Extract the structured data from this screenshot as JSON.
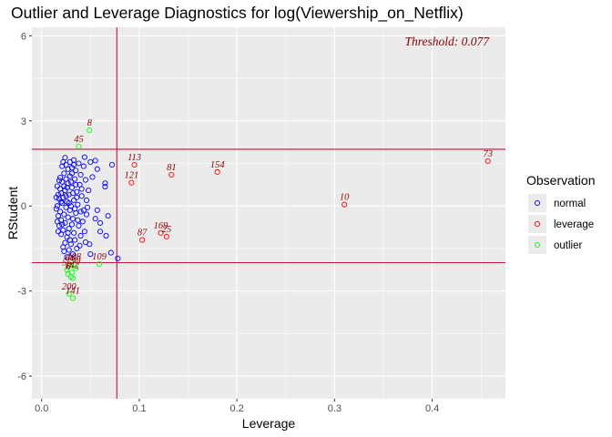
{
  "chart_data": {
    "type": "scatter",
    "title": "Outlier and Leverage Diagnostics for log(Viewership_on_Netflix)",
    "xlabel": "Leverage",
    "ylabel": "RStudent",
    "xlim": [
      -0.01,
      0.475
    ],
    "ylim": [
      -6.8,
      6.3
    ],
    "x_ticks": [
      0.0,
      0.1,
      0.2,
      0.3,
      0.4
    ],
    "x_tick_labels": [
      "0.0",
      "0.1",
      "0.2",
      "0.3",
      "0.4"
    ],
    "y_ticks": [
      -6,
      -3,
      0,
      3,
      6
    ],
    "y_tick_labels": [
      "-6",
      "-3",
      "0",
      "3",
      "6"
    ],
    "grid": true,
    "threshold_leverage": 0.077,
    "threshold_label": "Threshold: 0.077",
    "rstudent_limits": [
      -2,
      2
    ],
    "legend": {
      "title": "Observation",
      "position": "right",
      "entries": [
        {
          "label": "normal",
          "color": "#0000ff"
        },
        {
          "label": "leverage",
          "color": "#ff0000"
        },
        {
          "label": "outlier",
          "color": "#00ff00"
        }
      ]
    },
    "colors": {
      "normal": "#0000ff",
      "leverage": "#ff0000",
      "outlier": "#00ff00",
      "reference_line": "#c0143c",
      "label_text": "#8b0000"
    },
    "series": [
      {
        "name": "leverage",
        "points": [
          {
            "x": 0.457,
            "y": 1.58,
            "label": "73"
          },
          {
            "x": 0.31,
            "y": 0.05,
            "label": "10"
          },
          {
            "x": 0.18,
            "y": 1.2,
            "label": "154"
          },
          {
            "x": 0.133,
            "y": 1.1,
            "label": "81"
          },
          {
            "x": 0.095,
            "y": 1.45,
            "label": "113"
          },
          {
            "x": 0.092,
            "y": 0.82,
            "label": "121"
          },
          {
            "x": 0.103,
            "y": -1.2,
            "label": "87"
          },
          {
            "x": 0.122,
            "y": -0.95,
            "label": "169"
          },
          {
            "x": 0.128,
            "y": -1.08,
            "label": "25"
          }
        ]
      },
      {
        "name": "outlier",
        "points": [
          {
            "x": 0.049,
            "y": 2.67,
            "label": "8"
          },
          {
            "x": 0.038,
            "y": 2.1,
            "label": "45"
          },
          {
            "x": 0.059,
            "y": -2.05,
            "label": "109"
          },
          {
            "x": 0.033,
            "y": -2.05,
            "label": "108"
          },
          {
            "x": 0.029,
            "y": -2.1,
            "label": "66"
          },
          {
            "x": 0.035,
            "y": -2.2,
            "label": "99"
          },
          {
            "x": 0.026,
            "y": -2.25,
            "label": "55"
          },
          {
            "x": 0.031,
            "y": -2.35,
            "label": "142"
          },
          {
            "x": 0.027,
            "y": -2.4,
            "label": "6"
          },
          {
            "x": 0.032,
            "y": -2.55,
            "label": ""
          },
          {
            "x": 0.03,
            "y": -2.5,
            "label": ""
          },
          {
            "x": 0.028,
            "y": -3.1,
            "label": "200"
          },
          {
            "x": 0.032,
            "y": -3.25,
            "label": "141"
          }
        ]
      },
      {
        "name": "normal",
        "points": [
          {
            "x": 0.078,
            "y": -1.85,
            "label": ""
          },
          {
            "x": 0.071,
            "y": -1.65,
            "label": ""
          },
          {
            "x": 0.072,
            "y": 1.45,
            "label": ""
          },
          {
            "x": 0.065,
            "y": 0.8,
            "label": ""
          },
          {
            "x": 0.065,
            "y": 0.68,
            "label": ""
          },
          {
            "x": 0.068,
            "y": -0.35,
            "label": ""
          },
          {
            "x": 0.066,
            "y": -1.05,
            "label": ""
          },
          {
            "x": 0.055,
            "y": 1.6,
            "label": ""
          },
          {
            "x": 0.057,
            "y": 1.3,
            "label": ""
          },
          {
            "x": 0.05,
            "y": 1.55,
            "label": ""
          },
          {
            "x": 0.06,
            "y": -0.6,
            "label": ""
          },
          {
            "x": 0.057,
            "y": -0.15,
            "label": ""
          },
          {
            "x": 0.06,
            "y": -0.9,
            "label": ""
          },
          {
            "x": 0.055,
            "y": -0.45,
            "label": ""
          },
          {
            "x": 0.05,
            "y": -1.7,
            "label": ""
          },
          {
            "x": 0.049,
            "y": -1.35,
            "label": ""
          },
          {
            "x": 0.045,
            "y": -1.28,
            "label": ""
          },
          {
            "x": 0.052,
            "y": 1.02,
            "label": ""
          },
          {
            "x": 0.048,
            "y": 0.55,
            "label": ""
          },
          {
            "x": 0.046,
            "y": 0.2,
            "label": ""
          },
          {
            "x": 0.044,
            "y": 1.72,
            "label": ""
          },
          {
            "x": 0.043,
            "y": 1.4,
            "label": ""
          },
          {
            "x": 0.045,
            "y": 0.92,
            "label": ""
          },
          {
            "x": 0.042,
            "y": -0.55,
            "label": ""
          },
          {
            "x": 0.044,
            "y": -0.9,
            "label": ""
          },
          {
            "x": 0.047,
            "y": -0.05,
            "label": ""
          },
          {
            "x": 0.046,
            "y": -0.3,
            "label": ""
          },
          {
            "x": 0.04,
            "y": 1.1,
            "label": ""
          },
          {
            "x": 0.041,
            "y": 0.35,
            "label": ""
          },
          {
            "x": 0.04,
            "y": -0.2,
            "label": ""
          },
          {
            "x": 0.04,
            "y": -1.05,
            "label": ""
          },
          {
            "x": 0.038,
            "y": 1.5,
            "label": ""
          },
          {
            "x": 0.039,
            "y": 0.75,
            "label": ""
          },
          {
            "x": 0.037,
            "y": 0.05,
            "label": ""
          },
          {
            "x": 0.038,
            "y": -0.7,
            "label": ""
          },
          {
            "x": 0.036,
            "y": -1.5,
            "label": ""
          },
          {
            "x": 0.035,
            "y": 1.25,
            "label": ""
          },
          {
            "x": 0.036,
            "y": 0.5,
            "label": ""
          },
          {
            "x": 0.035,
            "y": -0.25,
            "label": ""
          },
          {
            "x": 0.034,
            "y": -1.2,
            "label": ""
          },
          {
            "x": 0.033,
            "y": 1.62,
            "label": ""
          },
          {
            "x": 0.034,
            "y": 0.95,
            "label": ""
          },
          {
            "x": 0.033,
            "y": 0.2,
            "label": ""
          },
          {
            "x": 0.032,
            "y": -0.45,
            "label": ""
          },
          {
            "x": 0.033,
            "y": -0.95,
            "label": ""
          },
          {
            "x": 0.032,
            "y": -1.7,
            "label": ""
          },
          {
            "x": 0.031,
            "y": 1.35,
            "label": ""
          },
          {
            "x": 0.031,
            "y": 0.65,
            "label": ""
          },
          {
            "x": 0.03,
            "y": 0.0,
            "label": ""
          },
          {
            "x": 0.031,
            "y": -0.65,
            "label": ""
          },
          {
            "x": 0.03,
            "y": -1.35,
            "label": ""
          },
          {
            "x": 0.029,
            "y": 1.55,
            "label": ""
          },
          {
            "x": 0.029,
            "y": 1.05,
            "label": ""
          },
          {
            "x": 0.028,
            "y": 0.4,
            "label": ""
          },
          {
            "x": 0.029,
            "y": -0.15,
            "label": ""
          },
          {
            "x": 0.028,
            "y": -0.8,
            "label": ""
          },
          {
            "x": 0.028,
            "y": -1.55,
            "label": ""
          },
          {
            "x": 0.027,
            "y": 1.3,
            "label": ""
          },
          {
            "x": 0.027,
            "y": 0.8,
            "label": ""
          },
          {
            "x": 0.026,
            "y": 0.15,
            "label": ""
          },
          {
            "x": 0.027,
            "y": -0.4,
            "label": ""
          },
          {
            "x": 0.026,
            "y": -1.1,
            "label": ""
          },
          {
            "x": 0.026,
            "y": -1.8,
            "label": ""
          },
          {
            "x": 0.025,
            "y": 1.45,
            "label": ""
          },
          {
            "x": 0.025,
            "y": 0.95,
            "label": ""
          },
          {
            "x": 0.024,
            "y": 0.55,
            "label": ""
          },
          {
            "x": 0.025,
            "y": -0.05,
            "label": ""
          },
          {
            "x": 0.024,
            "y": -0.6,
            "label": ""
          },
          {
            "x": 0.024,
            "y": -1.3,
            "label": ""
          },
          {
            "x": 0.023,
            "y": 1.15,
            "label": ""
          },
          {
            "x": 0.023,
            "y": 0.7,
            "label": ""
          },
          {
            "x": 0.022,
            "y": 0.3,
            "label": ""
          },
          {
            "x": 0.023,
            "y": -0.3,
            "label": ""
          },
          {
            "x": 0.022,
            "y": -0.85,
            "label": ""
          },
          {
            "x": 0.022,
            "y": -1.45,
            "label": ""
          },
          {
            "x": 0.021,
            "y": 1.4,
            "label": ""
          },
          {
            "x": 0.021,
            "y": 0.85,
            "label": ""
          },
          {
            "x": 0.02,
            "y": 0.45,
            "label": ""
          },
          {
            "x": 0.021,
            "y": 0.1,
            "label": ""
          },
          {
            "x": 0.02,
            "y": -0.5,
            "label": ""
          },
          {
            "x": 0.02,
            "y": -1.0,
            "label": ""
          },
          {
            "x": 0.019,
            "y": 1.0,
            "label": ""
          },
          {
            "x": 0.019,
            "y": 0.6,
            "label": ""
          },
          {
            "x": 0.018,
            "y": 0.25,
            "label": ""
          },
          {
            "x": 0.019,
            "y": -0.2,
            "label": ""
          },
          {
            "x": 0.018,
            "y": -0.7,
            "label": ""
          },
          {
            "x": 0.018,
            "y": 0.9,
            "label": ""
          },
          {
            "x": 0.017,
            "y": 0.4,
            "label": ""
          },
          {
            "x": 0.017,
            "y": -0.35,
            "label": ""
          },
          {
            "x": 0.017,
            "y": -0.9,
            "label": ""
          },
          {
            "x": 0.016,
            "y": 0.7,
            "label": ""
          },
          {
            "x": 0.016,
            "y": 0.0,
            "label": ""
          },
          {
            "x": 0.016,
            "y": -0.55,
            "label": ""
          },
          {
            "x": 0.015,
            "y": 0.3,
            "label": ""
          },
          {
            "x": 0.015,
            "y": -0.1,
            "label": ""
          },
          {
            "x": 0.022,
            "y": 1.55,
            "label": ""
          },
          {
            "x": 0.024,
            "y": 1.7,
            "label": ""
          },
          {
            "x": 0.026,
            "y": 0.65,
            "label": ""
          },
          {
            "x": 0.028,
            "y": 0.1,
            "label": ""
          },
          {
            "x": 0.03,
            "y": 0.85,
            "label": ""
          },
          {
            "x": 0.032,
            "y": 0.45,
            "label": ""
          },
          {
            "x": 0.034,
            "y": -0.1,
            "label": ""
          },
          {
            "x": 0.036,
            "y": 0.3,
            "label": ""
          },
          {
            "x": 0.037,
            "y": -0.5,
            "label": ""
          },
          {
            "x": 0.039,
            "y": -1.4,
            "label": ""
          },
          {
            "x": 0.041,
            "y": 0.6,
            "label": ""
          },
          {
            "x": 0.043,
            "y": -0.15,
            "label": ""
          },
          {
            "x": 0.025,
            "y": 0.35,
            "label": ""
          },
          {
            "x": 0.027,
            "y": -0.95,
            "label": ""
          },
          {
            "x": 0.029,
            "y": -1.2,
            "label": ""
          },
          {
            "x": 0.023,
            "y": -1.6,
            "label": ""
          },
          {
            "x": 0.021,
            "y": -0.65,
            "label": ""
          },
          {
            "x": 0.02,
            "y": 0.15,
            "label": ""
          },
          {
            "x": 0.031,
            "y": 1.15,
            "label": ""
          },
          {
            "x": 0.033,
            "y": 1.45,
            "label": ""
          },
          {
            "x": 0.035,
            "y": 0.75,
            "label": ""
          }
        ]
      }
    ]
  }
}
